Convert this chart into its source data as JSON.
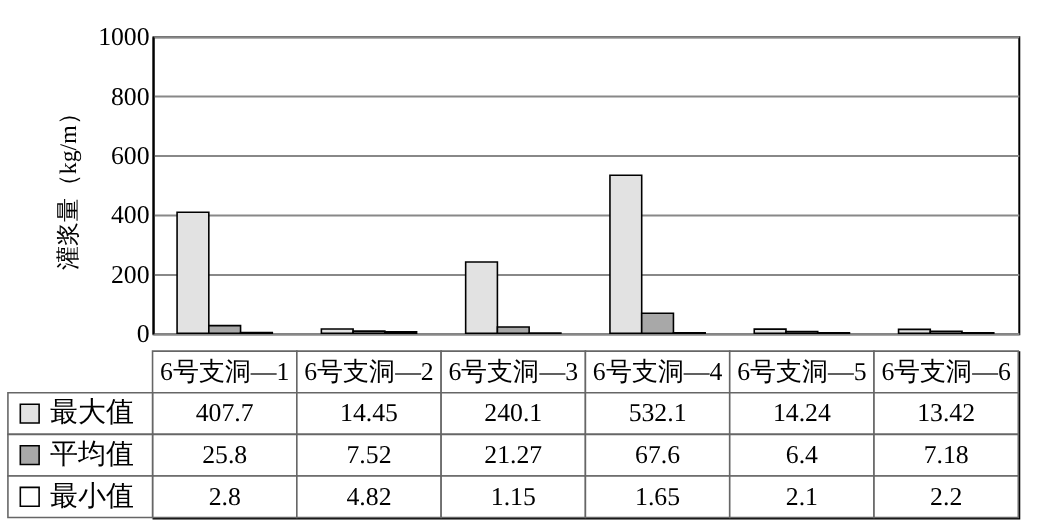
{
  "chart_data": {
    "type": "bar",
    "ylabel": "灌浆量（kg/m）",
    "categories": [
      "6号支洞—1",
      "6号支洞—2",
      "6号支洞—3",
      "6号支洞—4",
      "6号支洞—5",
      "6号支洞—6"
    ],
    "series": [
      {
        "name": "最大值",
        "color": "#e2e2e2",
        "values": [
          407.7,
          14.45,
          240.1,
          532.1,
          14.24,
          13.42
        ]
      },
      {
        "name": "平均值",
        "color": "#a8a8a8",
        "values": [
          25.8,
          7.52,
          21.27,
          67.6,
          6.4,
          7.18
        ]
      },
      {
        "name": "最小值",
        "color": "#ffffff",
        "values": [
          2.8,
          4.82,
          1.15,
          1.65,
          2.1,
          2.2
        ]
      }
    ],
    "ylim": [
      0,
      1000
    ],
    "yticks": [
      0,
      200,
      400,
      600,
      800,
      1000
    ],
    "grid": "y",
    "legend": "bottom left",
    "data_labels": true
  }
}
